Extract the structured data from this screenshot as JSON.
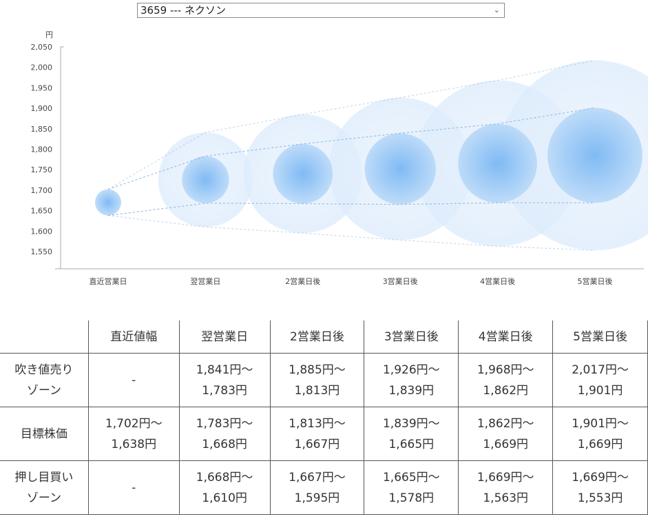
{
  "selector": {
    "value": "3659 --- ネクソン"
  },
  "chart_data": {
    "type": "bubble-range",
    "y_unit": "円",
    "ylim": [
      1510,
      2050
    ],
    "yticks": [
      2050,
      2000,
      1950,
      1900,
      1850,
      1800,
      1750,
      1700,
      1650,
      1600,
      1550
    ],
    "ytick_labels": [
      "2,050",
      "2,000",
      "1,950",
      "1,900",
      "1,850",
      "1,800",
      "1,750",
      "1,700",
      "1,650",
      "1,600",
      "1,550"
    ],
    "categories": [
      "直近営業日",
      "翌営業日",
      "2営業日後",
      "3営業日後",
      "4営業日後",
      "5営業日後"
    ],
    "sell_zone_top": [
      1702,
      1841,
      1885,
      1926,
      1968,
      2017
    ],
    "target_high": [
      1702,
      1783,
      1813,
      1839,
      1862,
      1901
    ],
    "target_low": [
      1638,
      1668,
      1667,
      1665,
      1669,
      1669
    ],
    "buy_zone_bottom": [
      1638,
      1610,
      1595,
      1578,
      1563,
      1553
    ],
    "colors": {
      "bubble_core": "#74b4f3",
      "bubble_outer": "#dcebfc",
      "line": "#8fb8e0"
    }
  },
  "table": {
    "headers": [
      "",
      "直近値幅",
      "翌営業日",
      "2営業日後",
      "3営業日後",
      "4営業日後",
      "5営業日後"
    ],
    "rows": [
      {
        "label": [
          "吹き値売り",
          "ゾーン"
        ],
        "cells": [
          [
            "-"
          ],
          [
            "1,841円～",
            "1,783円"
          ],
          [
            "1,885円～",
            "1,813円"
          ],
          [
            "1,926円～",
            "1,839円"
          ],
          [
            "1,968円～",
            "1,862円"
          ],
          [
            "2,017円～",
            "1,901円"
          ]
        ]
      },
      {
        "label": [
          "目標株価"
        ],
        "cells": [
          [
            "1,702円～",
            "1,638円"
          ],
          [
            "1,783円～",
            "1,668円"
          ],
          [
            "1,813円～",
            "1,667円"
          ],
          [
            "1,839円～",
            "1,665円"
          ],
          [
            "1,862円～",
            "1,669円"
          ],
          [
            "1,901円～",
            "1,669円"
          ]
        ]
      },
      {
        "label": [
          "押し目買い",
          "ゾーン"
        ],
        "cells": [
          [
            "-"
          ],
          [
            "1,668円～",
            "1,610円"
          ],
          [
            "1,667円～",
            "1,595円"
          ],
          [
            "1,665円～",
            "1,578円"
          ],
          [
            "1,669円～",
            "1,563円"
          ],
          [
            "1,669円～",
            "1,553円"
          ]
        ]
      }
    ]
  }
}
